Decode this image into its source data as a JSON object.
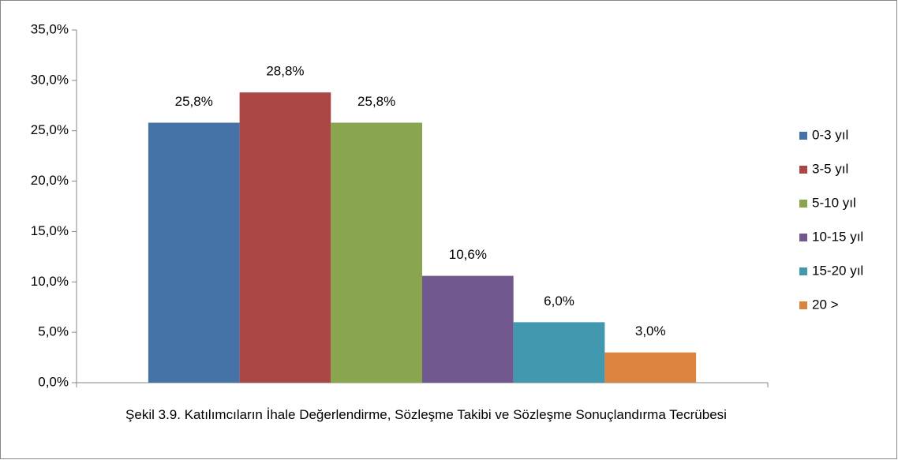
{
  "chart_data": {
    "type": "bar",
    "x_label": "Şekil 3.9. Katılımcıların İhale Değerlendirme, Sözleşme Takibi ve Sözleşme Sonuçlandırma Tecrübesi",
    "series": [
      {
        "name": "0-3 yıl",
        "color": "#4572a7",
        "values": [
          25.8
        ],
        "value_labels": [
          "25,8%"
        ]
      },
      {
        "name": "3-5 yıl",
        "color": "#aa4643",
        "values": [
          28.8
        ],
        "value_labels": [
          "28,8%"
        ]
      },
      {
        "name": "5-10 yıl",
        "color": "#89a54e",
        "values": [
          25.8
        ],
        "value_labels": [
          "25,8%"
        ]
      },
      {
        "name": "10-15 yıl",
        "color": "#71588f",
        "values": [
          10.6
        ],
        "value_labels": [
          "10,6%"
        ]
      },
      {
        "name": "15-20 yıl",
        "color": "#4198af",
        "values": [
          6.0
        ],
        "value_labels": [
          "6,0%"
        ]
      },
      {
        "name": "20 >",
        "color": "#db843d",
        "values": [
          3.0
        ],
        "value_labels": [
          "3,0%"
        ]
      }
    ],
    "ylim": [
      0,
      35
    ],
    "yticks": [
      {
        "value": 0,
        "label": "0,0%"
      },
      {
        "value": 5,
        "label": "5,0%"
      },
      {
        "value": 10,
        "label": "10,0%"
      },
      {
        "value": 15,
        "label": "15,0%"
      },
      {
        "value": 20,
        "label": "20,0%"
      },
      {
        "value": 25,
        "label": "25,0%"
      },
      {
        "value": 30,
        "label": "30,0%"
      },
      {
        "value": 35,
        "label": "35,0%"
      }
    ],
    "legend": "right"
  }
}
